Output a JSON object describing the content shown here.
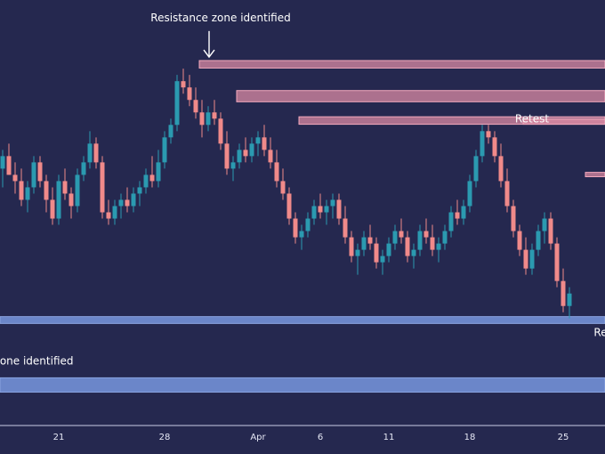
{
  "chart_data": {
    "type": "candlestick",
    "colors": {
      "background": "#25284f",
      "up": "#2b9ab0",
      "down": "#f08a8a",
      "resistance_fill": "#d98aa3",
      "resistance_stroke": "#f3a9bd",
      "support_fill": "#6b86c9",
      "support_stroke": "#8aa3e0",
      "axis_line": "#c9cde6",
      "text": "#ffffff"
    },
    "x_ticks": [
      {
        "label": "21",
        "index": 9
      },
      {
        "label": "28",
        "index": 26
      },
      {
        "label": "Apr",
        "index": 41
      },
      {
        "label": "6",
        "index": 51
      },
      {
        "label": "11",
        "index": 62
      },
      {
        "label": "18",
        "index": 75
      },
      {
        "label": "25",
        "index": 90
      }
    ],
    "annotations": [
      {
        "name": "resistance-label",
        "text": "Resistance zone identified",
        "x_index": 35,
        "price": 98.6
      },
      {
        "name": "retest-label",
        "text": "Retest",
        "x_index": 85,
        "price": 82.4
      },
      {
        "name": "support-label",
        "text": "zone identified",
        "x_index": 5,
        "price": 43.6
      },
      {
        "name": "retest-edge-label",
        "text": "Re",
        "x_index": 96,
        "price": 48.2
      }
    ],
    "resistance_zones": [
      {
        "start_index": 32,
        "top": 92.3,
        "bottom": 91.1
      },
      {
        "start_index": 38,
        "top": 87.5,
        "bottom": 85.7
      },
      {
        "start_index": 48,
        "top": 83.3,
        "bottom": 82.1
      },
      {
        "start_index": 84,
        "top": 82.9,
        "bottom": 82.1
      },
      {
        "start_index": 94,
        "top": 74.4,
        "bottom": 73.7
      }
    ],
    "support_zones": [
      {
        "top": 51.3,
        "bottom": 50.2
      },
      {
        "top": 41.5,
        "bottom": 39.2
      }
    ],
    "ohlc": [
      [
        75,
        78,
        72,
        77
      ],
      [
        77,
        79,
        74,
        74
      ],
      [
        74,
        76,
        71,
        73
      ],
      [
        73,
        75,
        69,
        70
      ],
      [
        70,
        73,
        68,
        72
      ],
      [
        72,
        77,
        71,
        76
      ],
      [
        76,
        77,
        72,
        73
      ],
      [
        73,
        74,
        68,
        70
      ],
      [
        70,
        72,
        66,
        67
      ],
      [
        67,
        74,
        66,
        73
      ],
      [
        73,
        75,
        70,
        71
      ],
      [
        71,
        72,
        67,
        69
      ],
      [
        69,
        75,
        68,
        74
      ],
      [
        74,
        77,
        73,
        76
      ],
      [
        76,
        81,
        75,
        79
      ],
      [
        79,
        80,
        75,
        76
      ],
      [
        76,
        77,
        67,
        68
      ],
      [
        68,
        70,
        66,
        67
      ],
      [
        67,
        70,
        66,
        69
      ],
      [
        69,
        71,
        67,
        70
      ],
      [
        70,
        72,
        68,
        69
      ],
      [
        69,
        72,
        68,
        71
      ],
      [
        71,
        73,
        69,
        72
      ],
      [
        72,
        75,
        71,
        74
      ],
      [
        74,
        77,
        72,
        73
      ],
      [
        73,
        78,
        72,
        76
      ],
      [
        76,
        81,
        75,
        80
      ],
      [
        80,
        83,
        79,
        82
      ],
      [
        82,
        90,
        81,
        89
      ],
      [
        89,
        91,
        87,
        88
      ],
      [
        88,
        90,
        85,
        86
      ],
      [
        86,
        88,
        83,
        84
      ],
      [
        84,
        86,
        80,
        82
      ],
      [
        82,
        85,
        81,
        84
      ],
      [
        84,
        86,
        82,
        83
      ],
      [
        83,
        84,
        78,
        79
      ],
      [
        79,
        81,
        74,
        75
      ],
      [
        75,
        77,
        73,
        76
      ],
      [
        76,
        79,
        75,
        78
      ],
      [
        78,
        80,
        76,
        77
      ],
      [
        77,
        80,
        76,
        79
      ],
      [
        79,
        81,
        77,
        80
      ],
      [
        80,
        82,
        77,
        78
      ],
      [
        78,
        80,
        75,
        76
      ],
      [
        76,
        78,
        72,
        73
      ],
      [
        73,
        75,
        70,
        71
      ],
      [
        71,
        72,
        66,
        67
      ],
      [
        67,
        68,
        63,
        64
      ],
      [
        64,
        66,
        62,
        65
      ],
      [
        65,
        68,
        64,
        67
      ],
      [
        67,
        70,
        66,
        69
      ],
      [
        69,
        71,
        67,
        68
      ],
      [
        68,
        70,
        66,
        69
      ],
      [
        69,
        71,
        67,
        70
      ],
      [
        70,
        71,
        66,
        67
      ],
      [
        67,
        69,
        63,
        64
      ],
      [
        64,
        65,
        60,
        61
      ],
      [
        61,
        63,
        58,
        62
      ],
      [
        62,
        65,
        61,
        64
      ],
      [
        64,
        66,
        62,
        63
      ],
      [
        63,
        64,
        59,
        60
      ],
      [
        60,
        62,
        58,
        61
      ],
      [
        61,
        64,
        60,
        63
      ],
      [
        63,
        66,
        62,
        65
      ],
      [
        65,
        67,
        63,
        64
      ],
      [
        64,
        65,
        60,
        61
      ],
      [
        61,
        63,
        59,
        62
      ],
      [
        62,
        66,
        61,
        65
      ],
      [
        65,
        67,
        63,
        64
      ],
      [
        64,
        66,
        61,
        62
      ],
      [
        62,
        64,
        60,
        63
      ],
      [
        63,
        66,
        62,
        65
      ],
      [
        65,
        69,
        64,
        68
      ],
      [
        68,
        70,
        66,
        67
      ],
      [
        67,
        70,
        66,
        69
      ],
      [
        69,
        74,
        68,
        73
      ],
      [
        73,
        78,
        72,
        77
      ],
      [
        77,
        82,
        76,
        81
      ],
      [
        81,
        82,
        79,
        80
      ],
      [
        80,
        81,
        76,
        77
      ],
      [
        77,
        79,
        72,
        73
      ],
      [
        73,
        75,
        68,
        69
      ],
      [
        69,
        70,
        64,
        65
      ],
      [
        65,
        66,
        61,
        62
      ],
      [
        62,
        64,
        58,
        59
      ],
      [
        59,
        63,
        58,
        62
      ],
      [
        62,
        66,
        61,
        65
      ],
      [
        65,
        68,
        63,
        67
      ],
      [
        67,
        68,
        62,
        63
      ],
      [
        63,
        64,
        56,
        57
      ],
      [
        57,
        59,
        52,
        53
      ],
      [
        53,
        56,
        51,
        55
      ]
    ],
    "ylim": [
      35,
      102
    ],
    "grid": false,
    "legend": false
  }
}
